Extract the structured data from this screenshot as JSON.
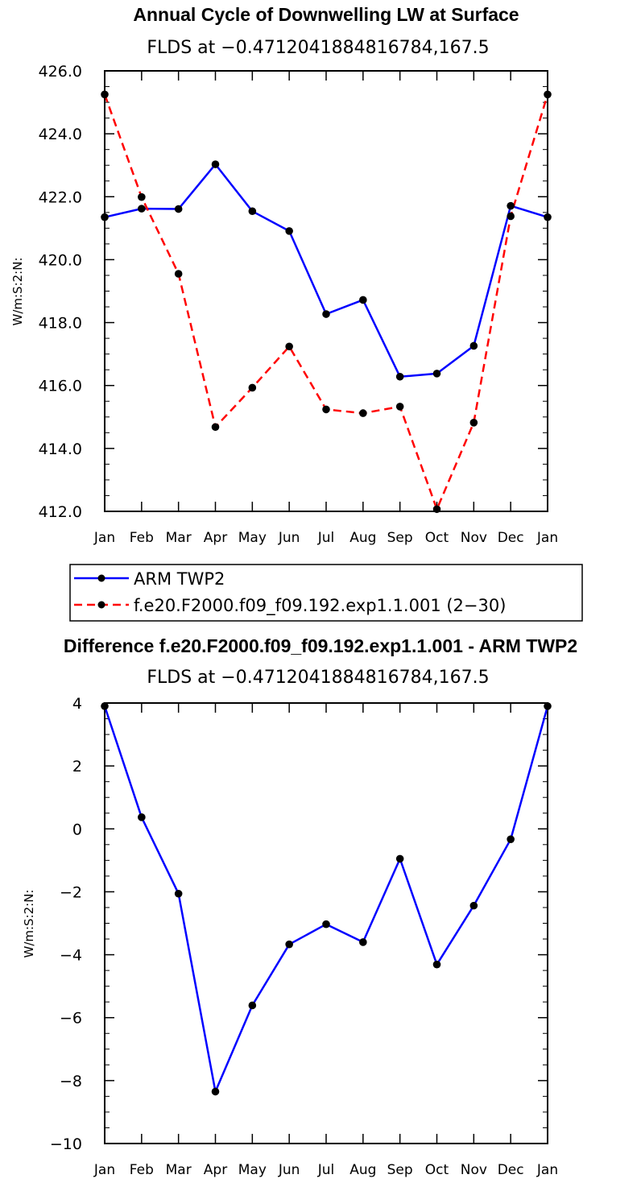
{
  "chart_data": [
    {
      "type": "line",
      "title": "Annual Cycle of Downwelling LW at Surface",
      "subtitle": "FLDS at −0.4712041884816784,167.5",
      "ylabel": "W/m:S:2:N:",
      "xlabel": "",
      "categories": [
        "Jan",
        "Feb",
        "Mar",
        "Apr",
        "May",
        "Jun",
        "Jul",
        "Aug",
        "Sep",
        "Oct",
        "Nov",
        "Dec",
        "Jan"
      ],
      "ylim": [
        412.0,
        426.0
      ],
      "yticks": [
        "412.0",
        "414.0",
        "416.0",
        "418.0",
        "420.0",
        "422.0",
        "424.0",
        "426.0"
      ],
      "series": [
        {
          "name": "ARM TWP2",
          "color": "#0000ff",
          "dash": "solid",
          "values": [
            421.35,
            421.62,
            421.61,
            423.03,
            421.54,
            420.91,
            418.27,
            418.72,
            416.28,
            416.38,
            417.26,
            421.71,
            421.35
          ]
        },
        {
          "name": "f.e20.F2000.f09_f09.192.exp1.1.001 (2−30)",
          "color": "#ff0000",
          "dash": "dashed",
          "values": [
            425.25,
            421.99,
            419.55,
            414.68,
            415.93,
            417.24,
            415.24,
            415.12,
            415.33,
            412.07,
            414.82,
            421.38,
            425.25
          ]
        }
      ],
      "legend": "below"
    },
    {
      "type": "line",
      "title": "Difference f.e20.F2000.f09_f09.192.exp1.1.001 - ARM TWP2",
      "subtitle": "FLDS at −0.4712041884816784,167.5",
      "ylabel": "W/m:S:2:N:",
      "xlabel": "",
      "categories": [
        "Jan",
        "Feb",
        "Mar",
        "Apr",
        "May",
        "Jun",
        "Jul",
        "Aug",
        "Sep",
        "Oct",
        "Nov",
        "Dec",
        "Jan"
      ],
      "ylim": [
        -10,
        4
      ],
      "yticks": [
        "−10",
        "−8",
        "−6",
        "−4",
        "−2",
        "0",
        "2",
        "4"
      ],
      "series": [
        {
          "name": "Difference",
          "color": "#0000ff",
          "dash": "solid",
          "values": [
            3.9,
            0.37,
            -2.06,
            -8.35,
            -5.61,
            -3.67,
            -3.03,
            -3.6,
            -0.95,
            -4.31,
            -2.44,
            -0.33,
            3.9
          ]
        }
      ]
    }
  ]
}
